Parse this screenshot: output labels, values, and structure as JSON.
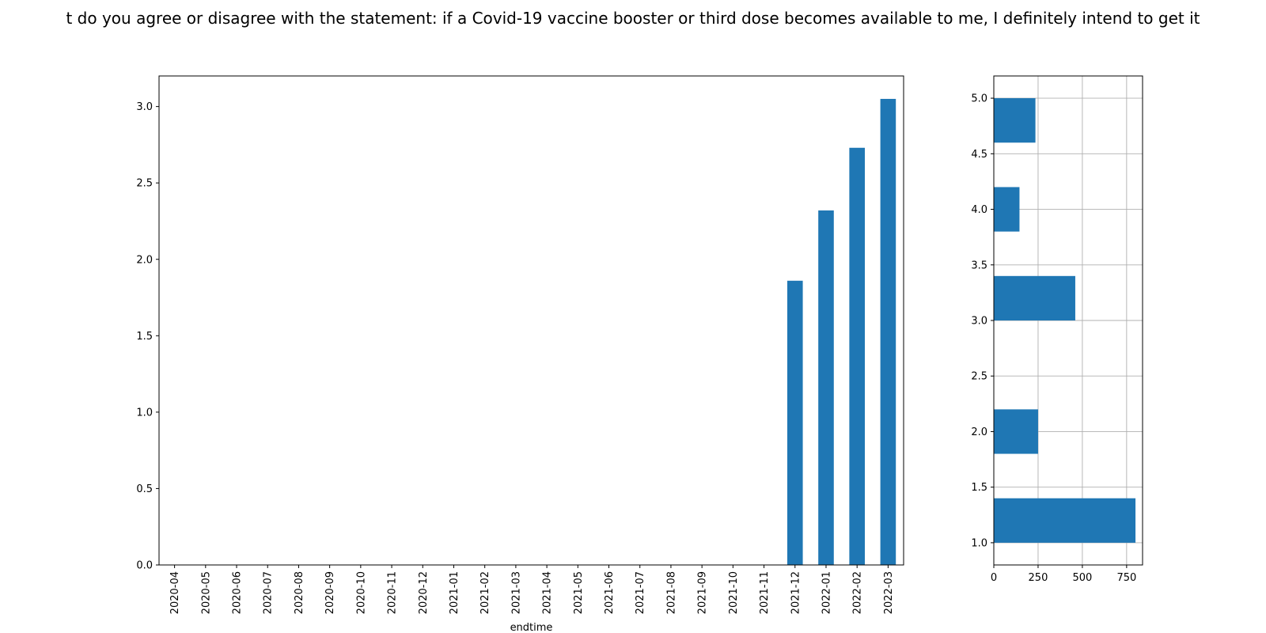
{
  "page_title": "t do you agree or disagree with the statement: if a Covid-19 vaccine booster or third dose becomes available to me, I definitely intend to get it",
  "colors": {
    "bar": "#1f77b4",
    "grid": "#b0b0b0",
    "axis": "#000000"
  },
  "chart_data": [
    {
      "type": "bar",
      "xlabel": "endtime",
      "ylabel": "",
      "ylim": [
        0,
        3.2
      ],
      "yticks": [
        "0.0",
        "0.5",
        "1.0",
        "1.5",
        "2.0",
        "2.5",
        "3.0"
      ],
      "grid": false,
      "categories": [
        "2020-04",
        "2020-05",
        "2020-06",
        "2020-07",
        "2020-08",
        "2020-09",
        "2020-10",
        "2020-11",
        "2020-12",
        "2021-01",
        "2021-02",
        "2021-03",
        "2021-04",
        "2021-05",
        "2021-06",
        "2021-07",
        "2021-08",
        "2021-09",
        "2021-10",
        "2021-11",
        "2021-12",
        "2022-01",
        "2022-02",
        "2022-03"
      ],
      "values": [
        0,
        0,
        0,
        0,
        0,
        0,
        0,
        0,
        0,
        0,
        0,
        0,
        0,
        0,
        0,
        0,
        0,
        0,
        0,
        0,
        1.86,
        2.32,
        2.73,
        3.05
      ]
    },
    {
      "type": "bar",
      "orientation": "horizontal",
      "xlabel": "",
      "ylabel": "",
      "xlim": [
        0,
        840
      ],
      "ylim": [
        0.8,
        5.2
      ],
      "xticks": [
        "0",
        "250",
        "500",
        "750"
      ],
      "yticks": [
        "1.0",
        "1.5",
        "2.0",
        "2.5",
        "3.0",
        "3.5",
        "4.0",
        "4.5",
        "5.0"
      ],
      "grid": true,
      "bins": [
        {
          "from": 1.0,
          "to": 1.4,
          "count": 800
        },
        {
          "from": 1.8,
          "to": 2.2,
          "count": 250
        },
        {
          "from": 3.0,
          "to": 3.4,
          "count": 460
        },
        {
          "from": 3.8,
          "to": 4.2,
          "count": 145
        },
        {
          "from": 4.6,
          "to": 5.0,
          "count": 235
        }
      ]
    }
  ]
}
